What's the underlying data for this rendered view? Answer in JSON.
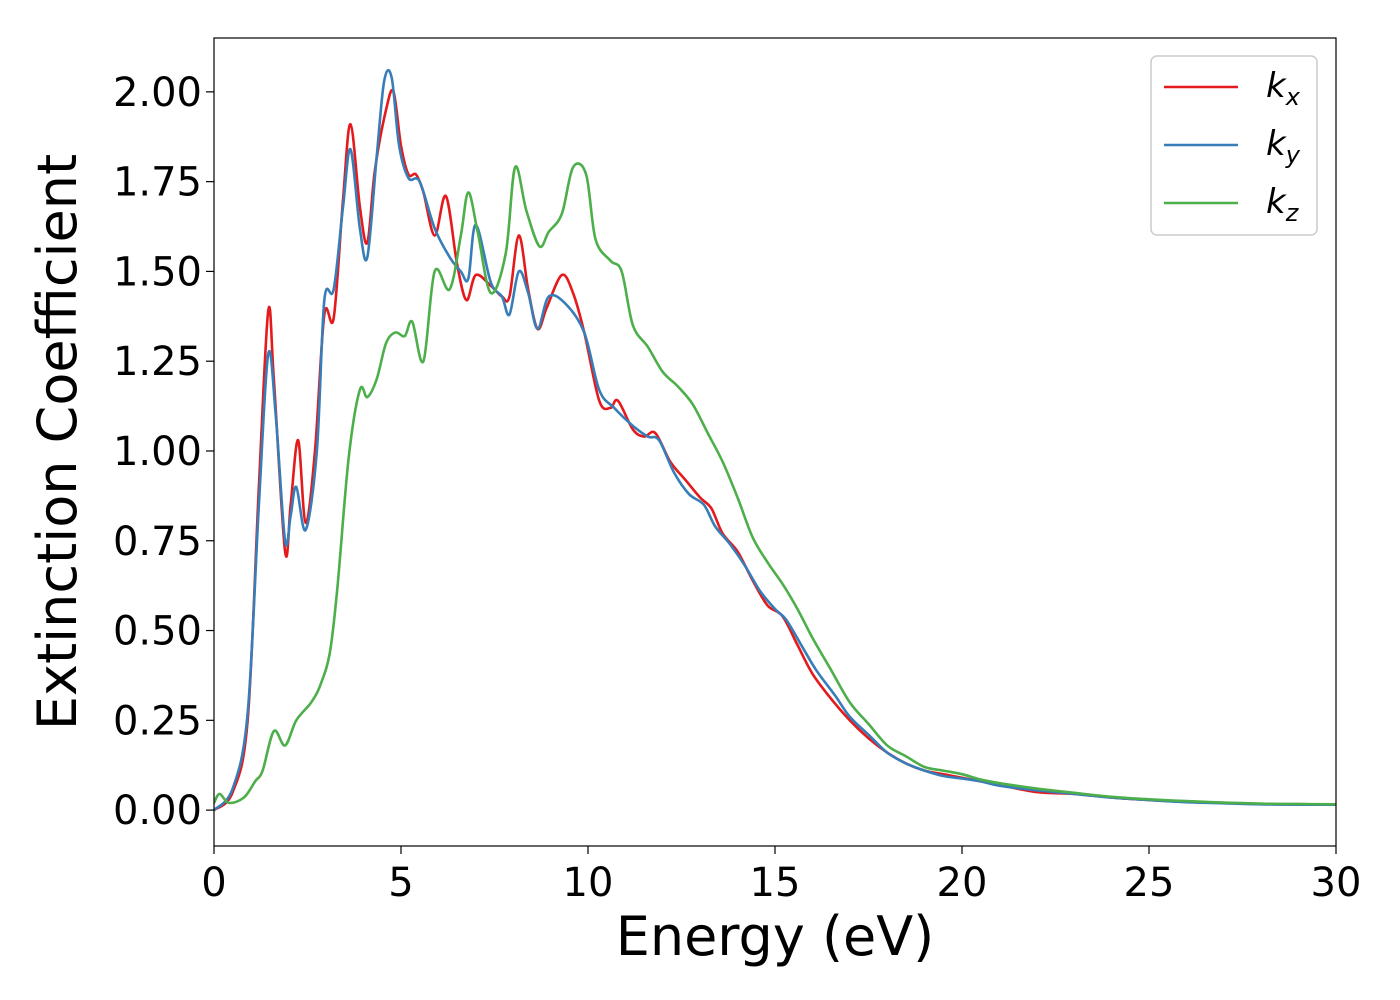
{
  "chart_data": {
    "type": "line",
    "xlabel": "Energy (eV)",
    "ylabel": "Extinction Coefficient",
    "xlim": [
      0,
      30
    ],
    "ylim": [
      -0.1,
      2.15
    ],
    "grid": false,
    "legend_position": "top-right",
    "x_ticks": [
      0,
      5,
      10,
      15,
      20,
      25,
      30
    ],
    "x_tick_labels": [
      "0",
      "5",
      "10",
      "15",
      "20",
      "25",
      "30"
    ],
    "y_ticks": [
      0.0,
      0.25,
      0.5,
      0.75,
      1.0,
      1.25,
      1.5,
      1.75,
      2.0
    ],
    "y_tick_labels": [
      "0.00",
      "0.25",
      "0.50",
      "0.75",
      "1.00",
      "1.25",
      "1.50",
      "1.75",
      "2.00"
    ],
    "series": [
      {
        "name": "k",
        "sub": "x",
        "color": "#e41a1c",
        "points": [
          [
            0,
            0
          ],
          [
            0.5,
            0.05
          ],
          [
            0.9,
            0.25
          ],
          [
            1.2,
            0.9
          ],
          [
            1.45,
            1.39
          ],
          [
            1.6,
            1.2
          ],
          [
            1.9,
            0.72
          ],
          [
            2.05,
            0.85
          ],
          [
            2.25,
            1.03
          ],
          [
            2.45,
            0.8
          ],
          [
            2.7,
            1.0
          ],
          [
            2.95,
            1.38
          ],
          [
            3.2,
            1.37
          ],
          [
            3.45,
            1.7
          ],
          [
            3.65,
            1.91
          ],
          [
            3.9,
            1.68
          ],
          [
            4.1,
            1.58
          ],
          [
            4.3,
            1.78
          ],
          [
            4.6,
            1.95
          ],
          [
            4.8,
            2.0
          ],
          [
            5.0,
            1.85
          ],
          [
            5.2,
            1.77
          ],
          [
            5.4,
            1.77
          ],
          [
            5.6,
            1.72
          ],
          [
            5.9,
            1.6
          ],
          [
            6.2,
            1.71
          ],
          [
            6.5,
            1.52
          ],
          [
            6.75,
            1.42
          ],
          [
            7.0,
            1.49
          ],
          [
            7.4,
            1.46
          ],
          [
            7.7,
            1.43
          ],
          [
            7.9,
            1.43
          ],
          [
            8.15,
            1.6
          ],
          [
            8.4,
            1.45
          ],
          [
            8.65,
            1.34
          ],
          [
            8.9,
            1.4
          ],
          [
            9.3,
            1.49
          ],
          [
            9.6,
            1.44
          ],
          [
            9.9,
            1.33
          ],
          [
            10.3,
            1.14
          ],
          [
            10.6,
            1.12
          ],
          [
            10.8,
            1.14
          ],
          [
            11.2,
            1.06
          ],
          [
            11.5,
            1.04
          ],
          [
            11.8,
            1.05
          ],
          [
            12.2,
            0.97
          ],
          [
            12.6,
            0.92
          ],
          [
            13.0,
            0.87
          ],
          [
            13.3,
            0.84
          ],
          [
            13.6,
            0.77
          ],
          [
            14.0,
            0.72
          ],
          [
            14.4,
            0.64
          ],
          [
            14.8,
            0.57
          ],
          [
            15.2,
            0.54
          ],
          [
            15.6,
            0.46
          ],
          [
            16.0,
            0.38
          ],
          [
            16.5,
            0.31
          ],
          [
            17.0,
            0.25
          ],
          [
            17.5,
            0.2
          ],
          [
            18.0,
            0.16
          ],
          [
            18.5,
            0.13
          ],
          [
            19.0,
            0.11
          ],
          [
            19.5,
            0.1
          ],
          [
            20.0,
            0.09
          ],
          [
            20.5,
            0.08
          ],
          [
            21.0,
            0.07
          ],
          [
            22.0,
            0.05
          ],
          [
            23.0,
            0.045
          ],
          [
            24.0,
            0.035
          ],
          [
            25.0,
            0.028
          ],
          [
            26.0,
            0.024
          ],
          [
            27.0,
            0.02
          ],
          [
            28.0,
            0.017
          ],
          [
            29.0,
            0.016
          ],
          [
            30.0,
            0.015
          ]
        ]
      },
      {
        "name": "k",
        "sub": "y",
        "color": "#377eb8",
        "points": [
          [
            0,
            0
          ],
          [
            0.5,
            0.06
          ],
          [
            0.9,
            0.27
          ],
          [
            1.2,
            0.85
          ],
          [
            1.45,
            1.27
          ],
          [
            1.65,
            1.1
          ],
          [
            1.9,
            0.75
          ],
          [
            2.05,
            0.82
          ],
          [
            2.2,
            0.9
          ],
          [
            2.45,
            0.78
          ],
          [
            2.75,
            1.0
          ],
          [
            2.95,
            1.42
          ],
          [
            3.2,
            1.45
          ],
          [
            3.45,
            1.68
          ],
          [
            3.65,
            1.84
          ],
          [
            3.9,
            1.62
          ],
          [
            4.1,
            1.54
          ],
          [
            4.35,
            1.82
          ],
          [
            4.55,
            2.03
          ],
          [
            4.75,
            2.04
          ],
          [
            4.95,
            1.85
          ],
          [
            5.2,
            1.76
          ],
          [
            5.5,
            1.75
          ],
          [
            5.9,
            1.62
          ],
          [
            6.3,
            1.54
          ],
          [
            6.6,
            1.5
          ],
          [
            6.8,
            1.48
          ],
          [
            7.0,
            1.63
          ],
          [
            7.4,
            1.47
          ],
          [
            7.7,
            1.43
          ],
          [
            7.9,
            1.38
          ],
          [
            8.15,
            1.5
          ],
          [
            8.4,
            1.44
          ],
          [
            8.65,
            1.34
          ],
          [
            8.95,
            1.43
          ],
          [
            9.4,
            1.41
          ],
          [
            9.9,
            1.33
          ],
          [
            10.3,
            1.17
          ],
          [
            10.7,
            1.12
          ],
          [
            11.2,
            1.07
          ],
          [
            11.6,
            1.04
          ],
          [
            11.9,
            1.03
          ],
          [
            12.3,
            0.94
          ],
          [
            12.7,
            0.88
          ],
          [
            13.1,
            0.85
          ],
          [
            13.4,
            0.79
          ],
          [
            13.8,
            0.74
          ],
          [
            14.2,
            0.68
          ],
          [
            14.6,
            0.61
          ],
          [
            15.0,
            0.56
          ],
          [
            15.3,
            0.53
          ],
          [
            15.7,
            0.46
          ],
          [
            16.1,
            0.39
          ],
          [
            16.6,
            0.32
          ],
          [
            17.0,
            0.26
          ],
          [
            17.5,
            0.21
          ],
          [
            18.0,
            0.16
          ],
          [
            18.5,
            0.13
          ],
          [
            19.0,
            0.11
          ],
          [
            19.5,
            0.095
          ],
          [
            20.0,
            0.088
          ],
          [
            20.5,
            0.08
          ],
          [
            21.0,
            0.068
          ],
          [
            22.0,
            0.055
          ],
          [
            23.0,
            0.045
          ],
          [
            24.0,
            0.035
          ],
          [
            25.0,
            0.028
          ],
          [
            26.0,
            0.022
          ],
          [
            27.0,
            0.019
          ],
          [
            28.0,
            0.016
          ],
          [
            29.0,
            0.015
          ],
          [
            30.0,
            0.015
          ]
        ]
      },
      {
        "name": "k",
        "sub": "z",
        "color": "#4daf4a",
        "points": [
          [
            0,
            0.02
          ],
          [
            0.15,
            0.045
          ],
          [
            0.4,
            0.02
          ],
          [
            0.8,
            0.035
          ],
          [
            1.1,
            0.08
          ],
          [
            1.3,
            0.11
          ],
          [
            1.6,
            0.22
          ],
          [
            1.9,
            0.18
          ],
          [
            2.2,
            0.25
          ],
          [
            2.6,
            0.3
          ],
          [
            2.85,
            0.35
          ],
          [
            3.1,
            0.44
          ],
          [
            3.3,
            0.62
          ],
          [
            3.6,
            0.98
          ],
          [
            3.9,
            1.17
          ],
          [
            4.1,
            1.15
          ],
          [
            4.35,
            1.2
          ],
          [
            4.6,
            1.3
          ],
          [
            4.85,
            1.33
          ],
          [
            5.1,
            1.32
          ],
          [
            5.3,
            1.36
          ],
          [
            5.6,
            1.25
          ],
          [
            5.9,
            1.5
          ],
          [
            6.3,
            1.45
          ],
          [
            6.6,
            1.6
          ],
          [
            6.8,
            1.72
          ],
          [
            7.05,
            1.61
          ],
          [
            7.4,
            1.44
          ],
          [
            7.8,
            1.55
          ],
          [
            8.05,
            1.79
          ],
          [
            8.35,
            1.67
          ],
          [
            8.7,
            1.57
          ],
          [
            8.95,
            1.61
          ],
          [
            9.3,
            1.66
          ],
          [
            9.6,
            1.79
          ],
          [
            9.95,
            1.77
          ],
          [
            10.2,
            1.59
          ],
          [
            10.6,
            1.53
          ],
          [
            10.9,
            1.5
          ],
          [
            11.2,
            1.35
          ],
          [
            11.6,
            1.29
          ],
          [
            12.0,
            1.22
          ],
          [
            12.4,
            1.18
          ],
          [
            12.8,
            1.13
          ],
          [
            13.2,
            1.05
          ],
          [
            13.6,
            0.97
          ],
          [
            14.0,
            0.87
          ],
          [
            14.4,
            0.76
          ],
          [
            14.8,
            0.69
          ],
          [
            15.2,
            0.63
          ],
          [
            15.6,
            0.56
          ],
          [
            16.0,
            0.48
          ],
          [
            16.5,
            0.39
          ],
          [
            17.0,
            0.3
          ],
          [
            17.5,
            0.24
          ],
          [
            18.0,
            0.18
          ],
          [
            18.5,
            0.15
          ],
          [
            19.0,
            0.12
          ],
          [
            19.5,
            0.11
          ],
          [
            20.0,
            0.1
          ],
          [
            20.5,
            0.085
          ],
          [
            21.0,
            0.075
          ],
          [
            22.0,
            0.06
          ],
          [
            23.0,
            0.048
          ],
          [
            24.0,
            0.037
          ],
          [
            25.0,
            0.03
          ],
          [
            26.0,
            0.025
          ],
          [
            27.0,
            0.021
          ],
          [
            28.0,
            0.018
          ],
          [
            29.0,
            0.017
          ],
          [
            30.0,
            0.016
          ]
        ]
      }
    ]
  }
}
